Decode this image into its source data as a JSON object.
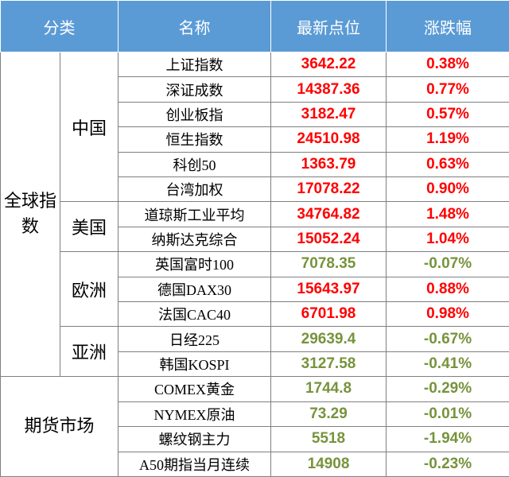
{
  "header": {
    "columns": [
      "分类",
      "名称",
      "最新点位",
      "涨跌幅"
    ]
  },
  "groups": [
    {
      "label": "全球指数",
      "subgroups": [
        {
          "label": "中国",
          "rows": [
            {
              "name": "上证指数",
              "value": "3642.22",
              "change": "0.38%",
              "color": "#ff0000"
            },
            {
              "name": "深证成数",
              "value": "14387.36",
              "change": "0.77%",
              "color": "#ff0000"
            },
            {
              "name": "创业板指",
              "value": "3182.47",
              "change": "0.57%",
              "color": "#ff0000"
            },
            {
              "name": "恒生指数",
              "value": "24510.98",
              "change": "1.19%",
              "color": "#ff0000"
            },
            {
              "name": "科创50",
              "value": "1363.79",
              "change": "0.63%",
              "color": "#ff0000"
            },
            {
              "name": "台湾加权",
              "value": "17078.22",
              "change": "0.90%",
              "color": "#ff0000"
            }
          ]
        },
        {
          "label": "美国",
          "rows": [
            {
              "name": "道琼斯工业平均",
              "value": "34764.82",
              "change": "1.48%",
              "color": "#ff0000"
            },
            {
              "name": "纳斯达克综合",
              "value": "15052.24",
              "change": "1.04%",
              "color": "#ff0000"
            }
          ]
        },
        {
          "label": "欧洲",
          "rows": [
            {
              "name": "英国富时100",
              "value": "7078.35",
              "change": "-0.07%",
              "color": "#77933c"
            },
            {
              "name": "德国DAX30",
              "value": "15643.97",
              "change": "0.88%",
              "color": "#ff0000"
            },
            {
              "name": "法国CAC40",
              "value": "6701.98",
              "change": "0.98%",
              "color": "#ff0000"
            }
          ]
        },
        {
          "label": "亚洲",
          "rows": [
            {
              "name": "日经225",
              "value": "29639.4",
              "change": "-0.67%",
              "color": "#77933c"
            },
            {
              "name": "韩国KOSPI",
              "value": "3127.58",
              "change": "-0.41%",
              "color": "#77933c"
            }
          ]
        }
      ]
    },
    {
      "label": "期货市场",
      "rows": [
        {
          "name": "COMEX黄金",
          "value": "1744.8",
          "change": "-0.29%",
          "color": "#77933c"
        },
        {
          "name": "NYMEX原油",
          "value": "73.29",
          "change": "-0.01%",
          "color": "#77933c"
        },
        {
          "name": "螺纹钢主力",
          "value": "5518",
          "change": "-1.94%",
          "color": "#77933c"
        },
        {
          "name": "A50期指当月连续",
          "value": "14908",
          "change": "-0.23%",
          "color": "#77933c"
        }
      ]
    }
  ]
}
